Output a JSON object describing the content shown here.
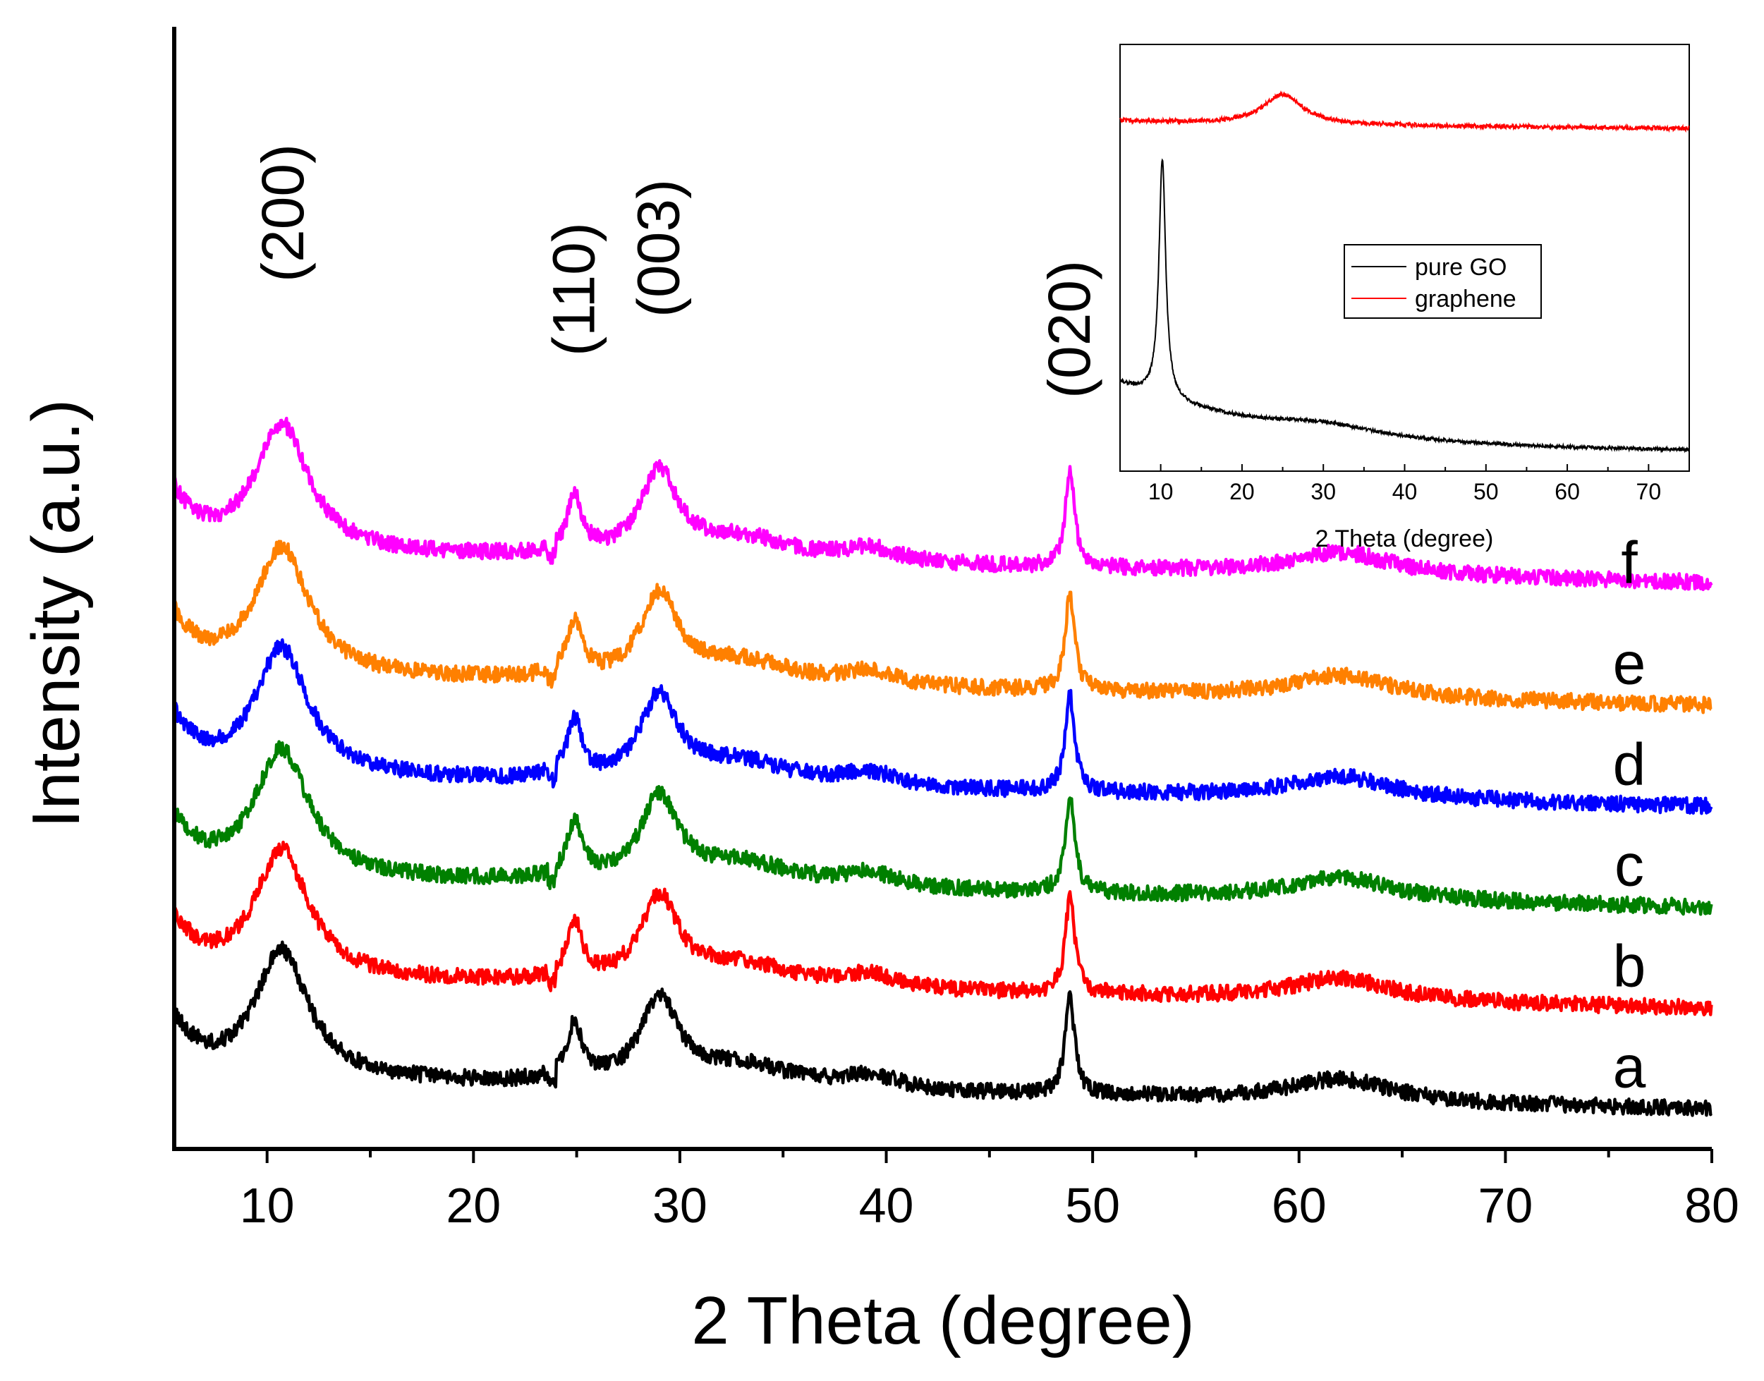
{
  "chart_data": [
    {
      "type": "line",
      "title": "",
      "xlabel": "2 Theta (degree)",
      "ylabel": "Intensity (a.u.)",
      "xlim": [
        5.5,
        80
      ],
      "ylim": [
        0,
        1
      ],
      "x_ticks": [
        10,
        20,
        30,
        40,
        50,
        60,
        70,
        80
      ],
      "y_ticks": [],
      "grid": false,
      "peak_annotations": [
        {
          "label": "(200)",
          "x": 10.8
        },
        {
          "label": "(110)",
          "x": 24.9
        },
        {
          "label": "(003)",
          "x": 29.0
        },
        {
          "label": "(020)",
          "x": 48.9
        }
      ],
      "series": [
        {
          "name": "a",
          "color": "#000000",
          "offset": 0.0,
          "baseline_at_80": 0.03,
          "peaks_x": [
            10.5,
            24.8,
            28.9,
            39.2,
            48.8,
            62.5
          ]
        },
        {
          "name": "b",
          "color": "#ff0000",
          "offset": 0.09,
          "baseline_at_80": 0.12,
          "peaks_x": [
            10.8,
            25.0,
            29.0,
            39.2,
            48.9,
            62.5
          ]
        },
        {
          "name": "c",
          "color": "#008000",
          "offset": 0.18,
          "baseline_at_80": 0.21,
          "peaks_x": [
            10.8,
            24.9,
            29.0,
            39.2,
            48.9,
            62.5
          ]
        },
        {
          "name": "d",
          "color": "#0000ff",
          "offset": 0.27,
          "baseline_at_80": 0.3,
          "peaks_x": [
            10.8,
            24.9,
            29.0,
            39.2,
            48.9,
            62.5
          ]
        },
        {
          "name": "e",
          "color": "#ff8000",
          "offset": 0.36,
          "baseline_at_80": 0.39,
          "peaks_x": [
            10.8,
            24.9,
            29.0,
            39.2,
            48.9,
            62.5
          ]
        },
        {
          "name": "f",
          "color": "#ff00ff",
          "offset": 0.47,
          "baseline_at_80": 0.48,
          "peaks_x": [
            10.8,
            24.9,
            29.0,
            39.2,
            48.9,
            62.5
          ]
        }
      ]
    },
    {
      "type": "line",
      "title": "",
      "xlabel": "2 Theta (degree)",
      "ylabel": "",
      "xlim": [
        5,
        75
      ],
      "ylim": [
        0,
        1
      ],
      "x_ticks": [
        10,
        20,
        30,
        40,
        50,
        60,
        70
      ],
      "grid": false,
      "legend_position": "center-right",
      "series": [
        {
          "name": "pure GO",
          "color": "#000000",
          "peak_x": 10.2,
          "note": "sharp peak"
        },
        {
          "name": "graphene",
          "color": "#ff0000",
          "peak_x": 25.0,
          "note": "broad hump"
        }
      ]
    }
  ]
}
